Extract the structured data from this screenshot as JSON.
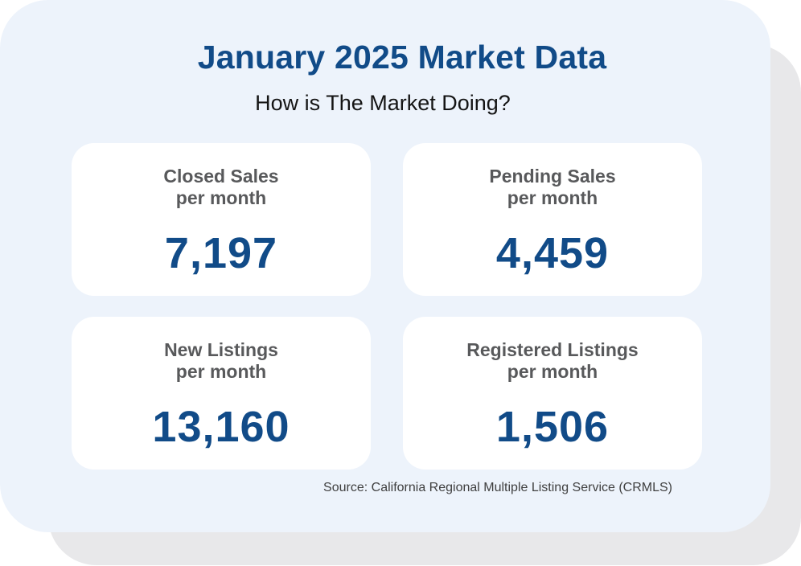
{
  "title": "January 2025 Market Data",
  "subtitle": "How is The Market Doing?",
  "stats": [
    {
      "label_line1": "Closed Sales",
      "label_line2": "per month",
      "value": "7,197"
    },
    {
      "label_line1": "Pending Sales",
      "label_line2": "per month",
      "value": "4,459"
    },
    {
      "label_line1": "New Listings",
      "label_line2": "per month",
      "value": "13,160"
    },
    {
      "label_line1": "Registered Listings",
      "label_line2": "per month",
      "value": "1,506"
    }
  ],
  "source": "Source: California Regional Multiple Listing Service (CRMLS)",
  "colors": {
    "accent": "#114b88",
    "background_panel": "#edf3fb",
    "shadow_panel": "#e8e8ea",
    "label_gray": "#58595b"
  }
}
